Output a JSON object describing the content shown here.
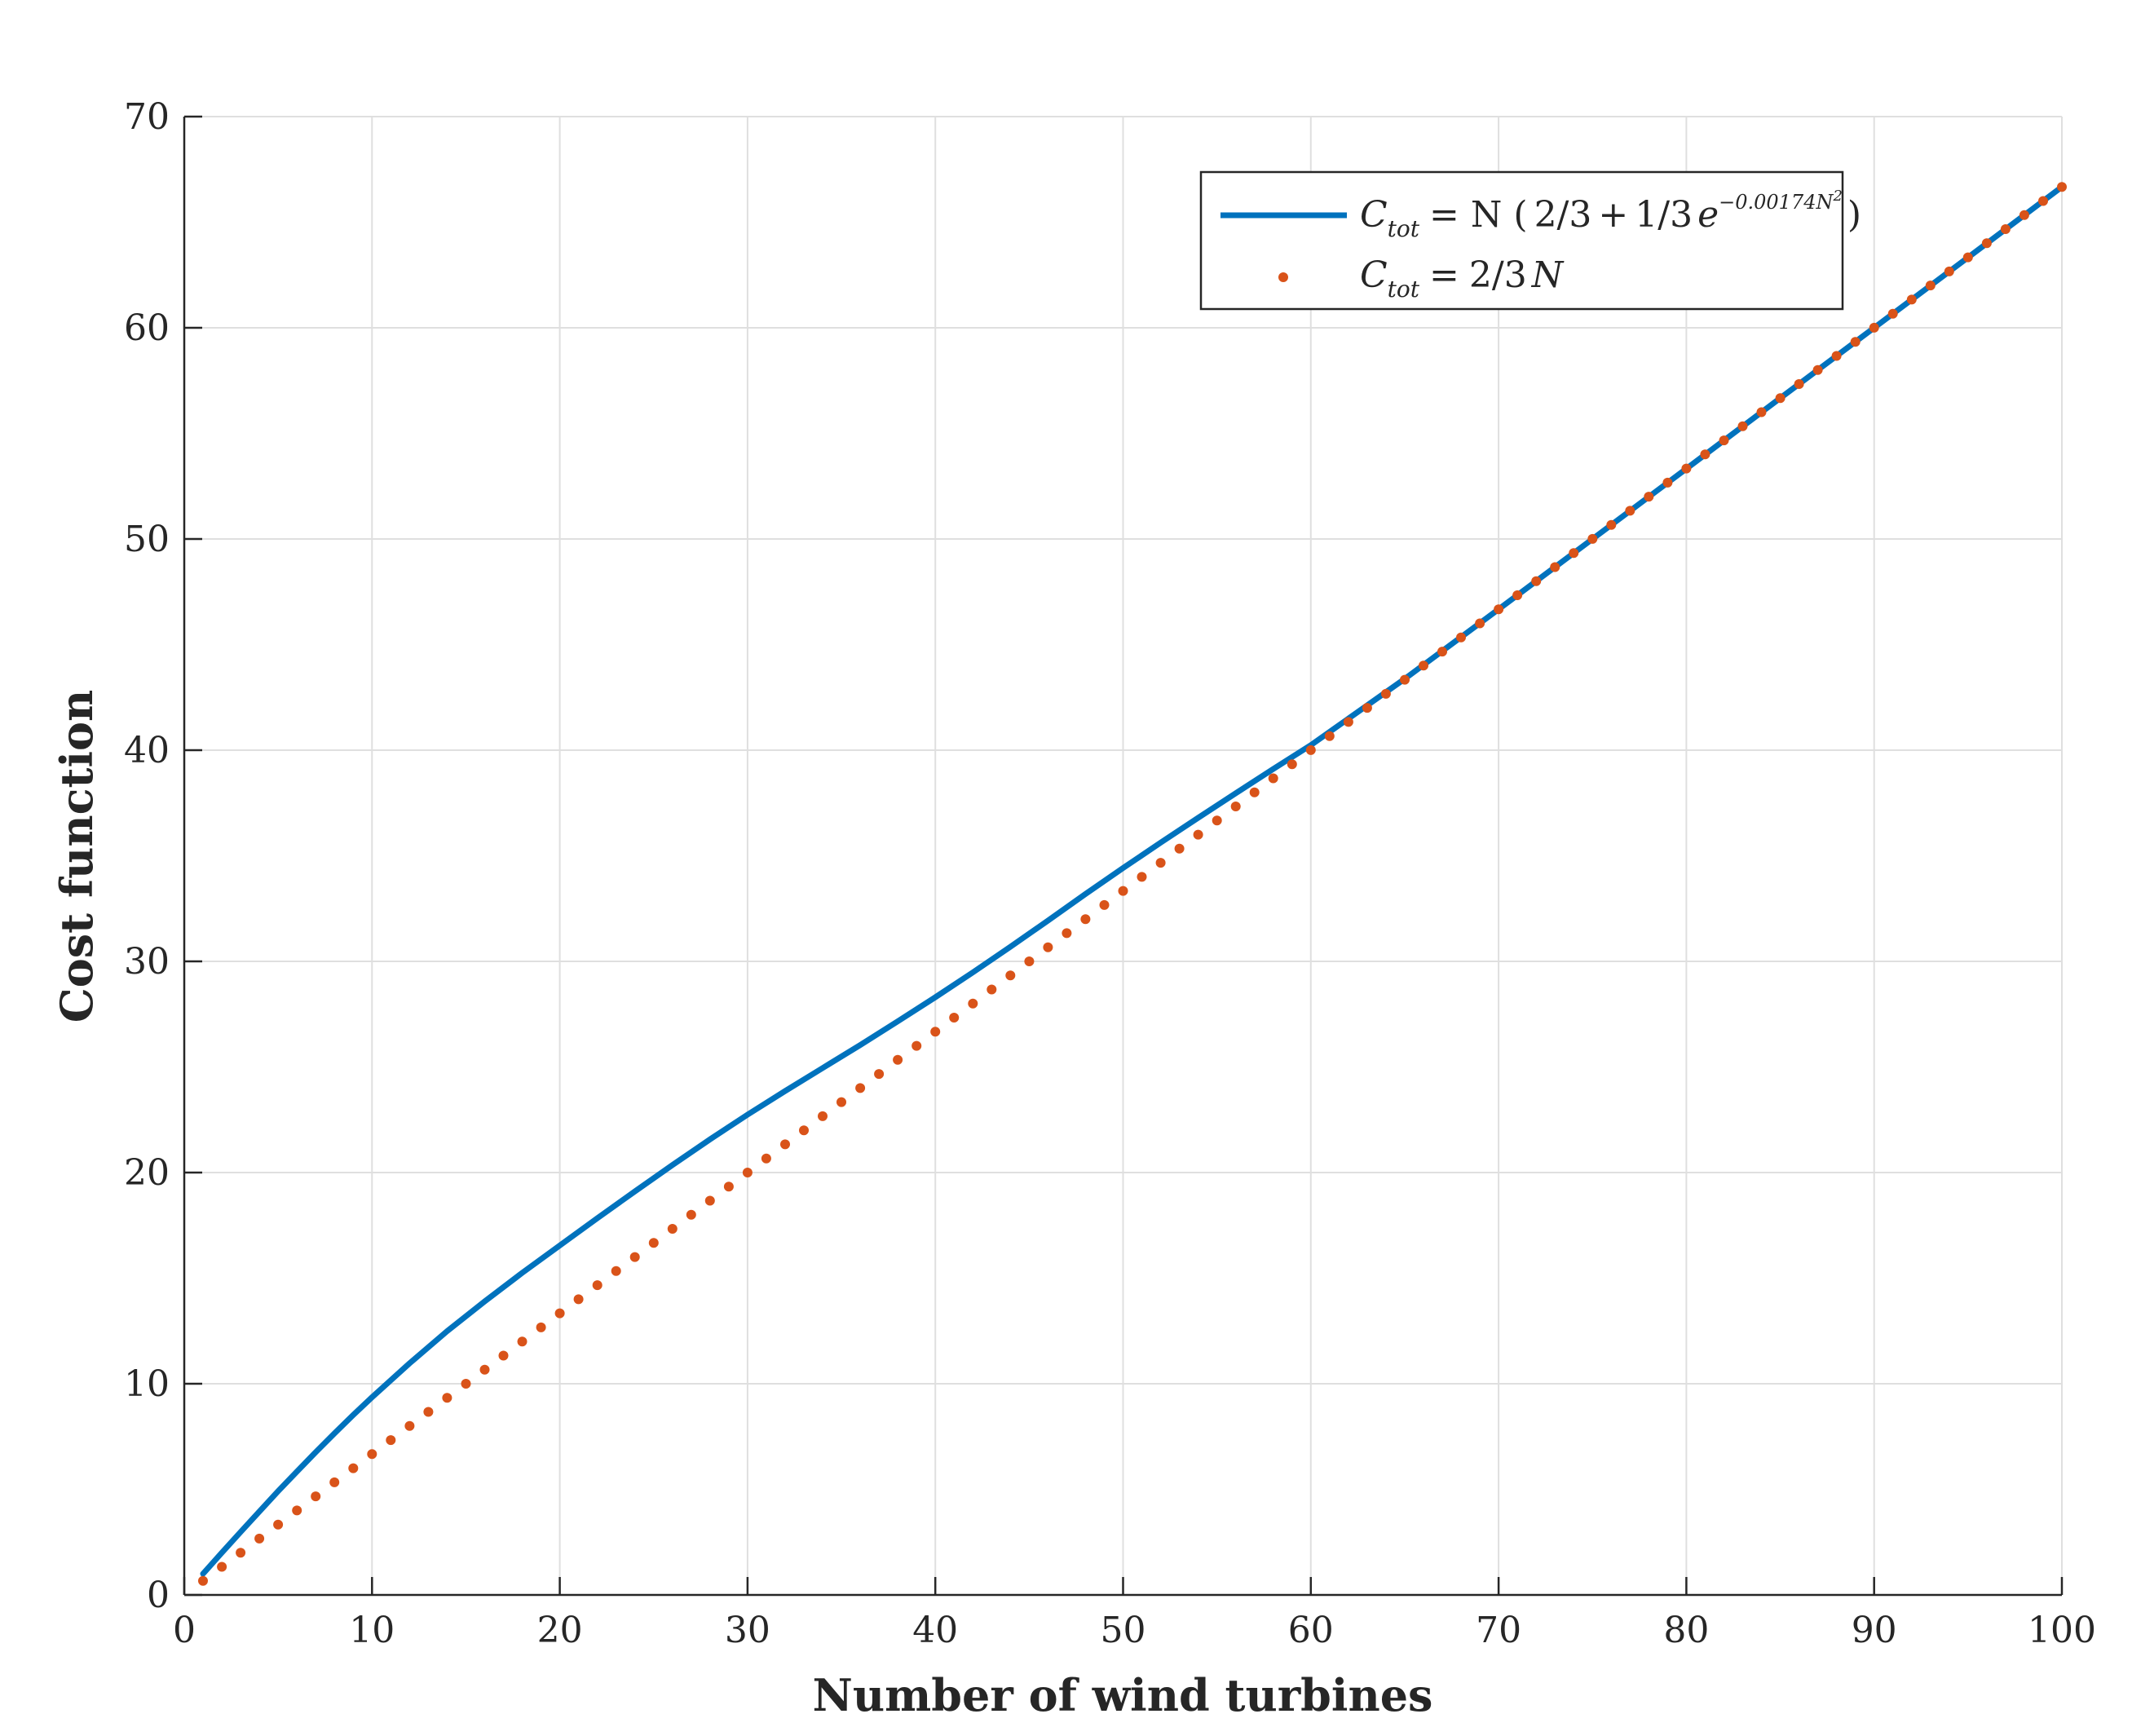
{
  "chart_data": {
    "type": "line",
    "title": "",
    "xlabel": "Number of wind turbines",
    "ylabel": "Cost function",
    "xlim": [
      0,
      100
    ],
    "ylim": [
      0,
      70
    ],
    "xticks": [
      0,
      10,
      20,
      30,
      40,
      50,
      60,
      70,
      80,
      90,
      100
    ],
    "yticks": [
      0,
      10,
      20,
      30,
      40,
      50,
      60,
      70
    ],
    "grid": true,
    "legend_position": "top-right",
    "series": [
      {
        "name": "C_tot = N ( 2/3 + 1/3 e^(-0.00174 N^2) )",
        "style": "solid",
        "color": "#0072BD",
        "x": [
          1,
          2,
          3,
          4,
          5,
          6,
          7,
          8,
          9,
          10,
          12,
          14,
          16,
          18,
          20,
          22,
          24,
          26,
          28,
          30,
          32,
          34,
          36,
          38,
          40,
          42,
          44,
          46,
          48,
          50,
          52,
          54,
          56,
          58,
          60,
          65,
          70,
          75,
          80,
          85,
          90,
          95,
          100
        ],
        "y": [
          1.0,
          2.0,
          2.98,
          3.95,
          4.91,
          5.84,
          6.76,
          7.65,
          8.52,
          9.36,
          10.97,
          12.49,
          13.9,
          15.25,
          16.55,
          17.84,
          19.11,
          20.36,
          21.57,
          22.74,
          23.86,
          24.95,
          26.04,
          27.16,
          28.3,
          29.48,
          30.69,
          31.93,
          33.19,
          34.42,
          35.62,
          36.8,
          37.96,
          39.11,
          40.24,
          43.38,
          46.67,
          50.0,
          53.33,
          56.67,
          60.0,
          63.33,
          66.67
        ]
      },
      {
        "name": "C_tot = 2/3 N",
        "style": "dotted",
        "color": "#D95319",
        "x_start": 1,
        "x_end": 100,
        "x_step": 1,
        "slope": 0.6667
      }
    ]
  },
  "legend": {
    "entry1": {
      "lhs": "C",
      "lhs_sub": "tot",
      "eq": "= N (",
      "frac1": "2/3",
      "plus": "+",
      "frac2": "1/3",
      "base": "e",
      "exp": "−0.00174N",
      "exp_sq": "2",
      "close": ")"
    },
    "entry2": {
      "lhs": "C",
      "lhs_sub": "tot",
      "eq": "=",
      "frac": "2/3",
      "rhs": "N"
    }
  }
}
